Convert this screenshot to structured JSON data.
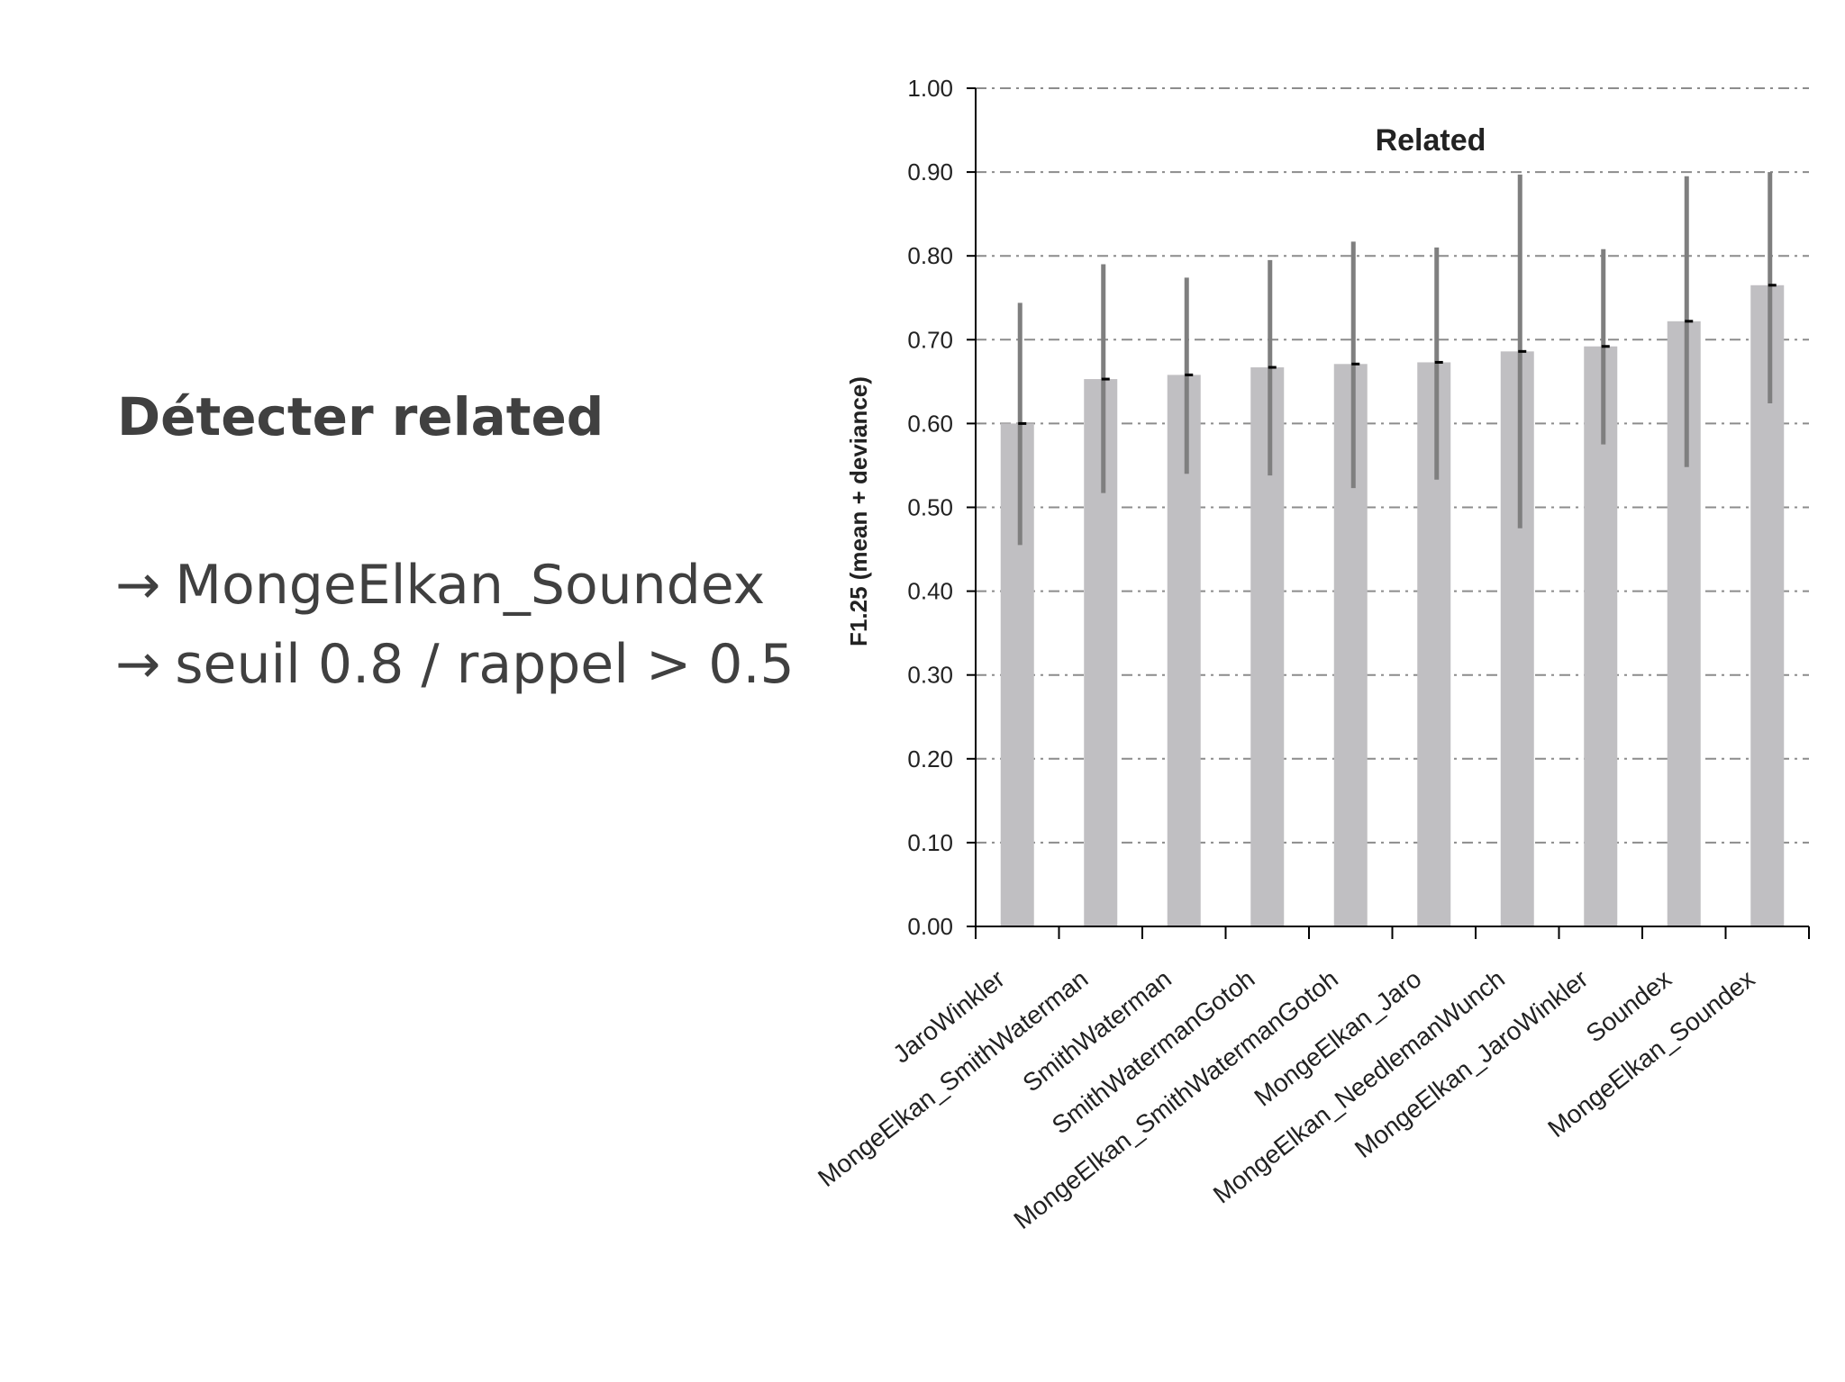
{
  "slide": {
    "title": "Détecter related",
    "bullets": [
      {
        "arrow": "→",
        "text": "MongeElkan_Soundex"
      },
      {
        "arrow": "→",
        "text": "seuil 0.8 / rappel > 0.5"
      }
    ]
  },
  "chart_data": {
    "type": "bar",
    "title": "Related",
    "xlabel": "",
    "ylabel": "F1.25 (mean + deviance)",
    "ylim": [
      0,
      1
    ],
    "y_ticks": [
      "0.00",
      "0.10",
      "0.20",
      "0.30",
      "0.40",
      "0.50",
      "0.60",
      "0.70",
      "0.80",
      "0.90",
      "1.00"
    ],
    "grid": true,
    "categories": [
      "JaroWinkler",
      "MongeElkan_SmithWaterman",
      "SmithWaterman",
      "SmithWatermanGotoh",
      "MongeElkan_SmithWatermanGotoh",
      "MongeElkan_Jaro",
      "MongeElkan_NeedlemanWunch",
      "MongeElkan_JaroWinkler",
      "Soundex",
      "MongeElkan_Soundex"
    ],
    "series": [
      {
        "values": [
          0.6,
          0.653,
          0.658,
          0.667,
          0.671,
          0.673,
          0.686,
          0.692,
          0.722,
          0.765
        ],
        "error_low": [
          0.455,
          0.517,
          0.54,
          0.538,
          0.523,
          0.533,
          0.475,
          0.575,
          0.548,
          0.624
        ],
        "error_high": [
          0.744,
          0.79,
          0.774,
          0.795,
          0.817,
          0.81,
          0.897,
          0.808,
          0.895,
          0.9
        ]
      }
    ],
    "colors": {
      "bar": "#c0bfc2",
      "error_bar": "#7f7f7f",
      "mean_marker": "#000000",
      "grid": "#8c8c8c",
      "axis": "#000000"
    }
  }
}
